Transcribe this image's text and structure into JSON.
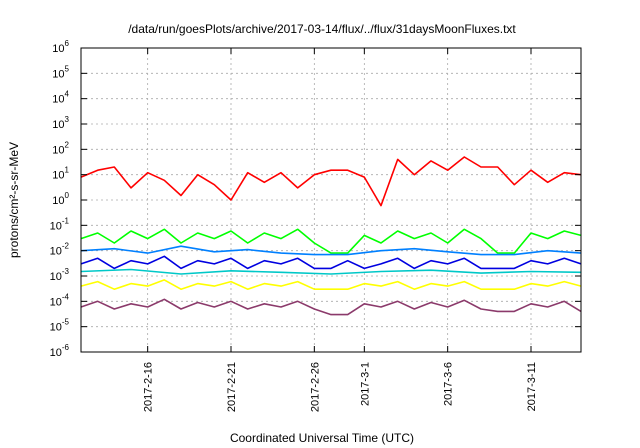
{
  "chart_data": {
    "type": "line",
    "title": "/data/run/goesPlots/archive/2017-03-14/flux/../flux/31daysMoonFluxes.txt",
    "xlabel": "Coordinated Universal Time (UTC)",
    "ylabel": "protons/cm²-s-sr-MeV",
    "y_scale": "log",
    "ylim": [
      1e-06,
      1000000.0
    ],
    "y_ticks": [
      {
        "value": 1e-06,
        "base": "10",
        "exp": "-6"
      },
      {
        "value": 1e-05,
        "base": "10",
        "exp": "-5"
      },
      {
        "value": 0.0001,
        "base": "10",
        "exp": "-4"
      },
      {
        "value": 0.001,
        "base": "10",
        "exp": "-3"
      },
      {
        "value": 0.01,
        "base": "10",
        "exp": "-2"
      },
      {
        "value": 0.1,
        "base": "10",
        "exp": "-1"
      },
      {
        "value": 1.0,
        "base": "10",
        "exp": "0"
      },
      {
        "value": 10.0,
        "base": "10",
        "exp": "1"
      },
      {
        "value": 100.0,
        "base": "10",
        "exp": "2"
      },
      {
        "value": 1000.0,
        "base": "10",
        "exp": "3"
      },
      {
        "value": 10000.0,
        "base": "10",
        "exp": "4"
      },
      {
        "value": 100000.0,
        "base": "10",
        "exp": "5"
      },
      {
        "value": 1000000.0,
        "base": "10",
        "exp": "6"
      }
    ],
    "xlim": [
      "2017-02-12",
      "2017-03-14"
    ],
    "x_ticks": [
      "2017-2-16",
      "2017-2-21",
      "2017-2-26",
      "2017-3-1",
      "2017-3-6",
      "2017-3-11"
    ],
    "x_tick_dates": [
      "2017-02-16",
      "2017-02-21",
      "2017-02-26",
      "2017-03-01",
      "2017-03-06",
      "2017-03-11"
    ],
    "grid": true,
    "series": [
      {
        "color": "#ff0000",
        "x": [
          "2017-02-12",
          "2017-02-13",
          "2017-02-14",
          "2017-02-15",
          "2017-02-16",
          "2017-02-17",
          "2017-02-18",
          "2017-02-19",
          "2017-02-20",
          "2017-02-21",
          "2017-02-22",
          "2017-02-23",
          "2017-02-24",
          "2017-02-25",
          "2017-02-26",
          "2017-02-27",
          "2017-02-28",
          "2017-03-01",
          "2017-03-02",
          "2017-03-03",
          "2017-03-04",
          "2017-03-05",
          "2017-03-06",
          "2017-03-07",
          "2017-03-08",
          "2017-03-09",
          "2017-03-10",
          "2017-03-11",
          "2017-03-12",
          "2017-03-13",
          "2017-03-14"
        ],
        "y": [
          8,
          15,
          20,
          3,
          12,
          6,
          1.5,
          10,
          4,
          1,
          12,
          5,
          12,
          3,
          10,
          15,
          15,
          8,
          0.6,
          40,
          10,
          35,
          15,
          50,
          20,
          20,
          4,
          15,
          5,
          12,
          10
        ]
      },
      {
        "color": "#00ff00",
        "x": [
          "2017-02-12",
          "2017-02-13",
          "2017-02-14",
          "2017-02-15",
          "2017-02-16",
          "2017-02-17",
          "2017-02-18",
          "2017-02-19",
          "2017-02-20",
          "2017-02-21",
          "2017-02-22",
          "2017-02-23",
          "2017-02-24",
          "2017-02-25",
          "2017-02-26",
          "2017-02-27",
          "2017-02-28",
          "2017-03-01",
          "2017-03-02",
          "2017-03-03",
          "2017-03-04",
          "2017-03-05",
          "2017-03-06",
          "2017-03-07",
          "2017-03-08",
          "2017-03-09",
          "2017-03-10",
          "2017-03-11",
          "2017-03-12",
          "2017-03-13",
          "2017-03-14"
        ],
        "y": [
          0.03,
          0.05,
          0.02,
          0.06,
          0.03,
          0.07,
          0.02,
          0.05,
          0.03,
          0.06,
          0.02,
          0.05,
          0.03,
          0.07,
          0.02,
          0.008,
          0.008,
          0.04,
          0.02,
          0.06,
          0.03,
          0.05,
          0.02,
          0.07,
          0.03,
          0.008,
          0.008,
          0.05,
          0.03,
          0.06,
          0.04
        ]
      },
      {
        "color": "#0080ff",
        "x": [
          "2017-02-12",
          "2017-02-14",
          "2017-02-16",
          "2017-02-18",
          "2017-02-20",
          "2017-02-22",
          "2017-02-24",
          "2017-02-26",
          "2017-02-28",
          "2017-03-02",
          "2017-03-04",
          "2017-03-06",
          "2017-03-08",
          "2017-03-10",
          "2017-03-12",
          "2017-03-14"
        ],
        "y": [
          0.01,
          0.012,
          0.008,
          0.015,
          0.009,
          0.011,
          0.008,
          0.007,
          0.007,
          0.01,
          0.012,
          0.009,
          0.007,
          0.007,
          0.01,
          0.008
        ]
      },
      {
        "color": "#0000e0",
        "x": [
          "2017-02-12",
          "2017-02-13",
          "2017-02-14",
          "2017-02-15",
          "2017-02-16",
          "2017-02-17",
          "2017-02-18",
          "2017-02-19",
          "2017-02-20",
          "2017-02-21",
          "2017-02-22",
          "2017-02-23",
          "2017-02-24",
          "2017-02-25",
          "2017-02-26",
          "2017-02-27",
          "2017-02-28",
          "2017-03-01",
          "2017-03-02",
          "2017-03-03",
          "2017-03-04",
          "2017-03-05",
          "2017-03-06",
          "2017-03-07",
          "2017-03-08",
          "2017-03-09",
          "2017-03-10",
          "2017-03-11",
          "2017-03-12",
          "2017-03-13",
          "2017-03-14"
        ],
        "y": [
          0.003,
          0.005,
          0.002,
          0.004,
          0.003,
          0.006,
          0.002,
          0.004,
          0.003,
          0.005,
          0.002,
          0.004,
          0.003,
          0.005,
          0.002,
          0.002,
          0.004,
          0.002,
          0.003,
          0.005,
          0.002,
          0.004,
          0.003,
          0.005,
          0.002,
          0.002,
          0.002,
          0.004,
          0.003,
          0.005,
          0.003
        ]
      },
      {
        "color": "#00c8c8",
        "x": [
          "2017-02-12",
          "2017-02-15",
          "2017-02-18",
          "2017-02-21",
          "2017-02-24",
          "2017-02-27",
          "2017-03-02",
          "2017-03-05",
          "2017-03-08",
          "2017-03-11",
          "2017-03-14"
        ],
        "y": [
          0.0015,
          0.0018,
          0.0012,
          0.0016,
          0.0014,
          0.0012,
          0.0015,
          0.0017,
          0.0013,
          0.0015,
          0.0014
        ]
      },
      {
        "color": "#ffff00",
        "x": [
          "2017-02-12",
          "2017-02-13",
          "2017-02-14",
          "2017-02-15",
          "2017-02-16",
          "2017-02-17",
          "2017-02-18",
          "2017-02-19",
          "2017-02-20",
          "2017-02-21",
          "2017-02-22",
          "2017-02-23",
          "2017-02-24",
          "2017-02-25",
          "2017-02-26",
          "2017-02-27",
          "2017-02-28",
          "2017-03-01",
          "2017-03-02",
          "2017-03-03",
          "2017-03-04",
          "2017-03-05",
          "2017-03-06",
          "2017-03-07",
          "2017-03-08",
          "2017-03-09",
          "2017-03-10",
          "2017-03-11",
          "2017-03-12",
          "2017-03-13",
          "2017-03-14"
        ],
        "y": [
          0.0004,
          0.0006,
          0.0003,
          0.0005,
          0.0004,
          0.0007,
          0.0003,
          0.0005,
          0.0004,
          0.0006,
          0.0003,
          0.0005,
          0.0004,
          0.0006,
          0.0003,
          0.0003,
          0.0003,
          0.0005,
          0.0004,
          0.0006,
          0.0003,
          0.0005,
          0.0004,
          0.0006,
          0.0003,
          0.0003,
          0.0003,
          0.0005,
          0.0004,
          0.0006,
          0.0004
        ]
      },
      {
        "color": "#8b3a6b",
        "x": [
          "2017-02-12",
          "2017-02-13",
          "2017-02-14",
          "2017-02-15",
          "2017-02-16",
          "2017-02-17",
          "2017-02-18",
          "2017-02-19",
          "2017-02-20",
          "2017-02-21",
          "2017-02-22",
          "2017-02-23",
          "2017-02-24",
          "2017-02-25",
          "2017-02-26",
          "2017-02-27",
          "2017-02-28",
          "2017-03-01",
          "2017-03-02",
          "2017-03-03",
          "2017-03-04",
          "2017-03-05",
          "2017-03-06",
          "2017-03-07",
          "2017-03-08",
          "2017-03-09",
          "2017-03-10",
          "2017-03-11",
          "2017-03-12",
          "2017-03-13",
          "2017-03-14"
        ],
        "y": [
          6e-05,
          0.0001,
          5e-05,
          8e-05,
          6e-05,
          0.00012,
          5e-05,
          9e-05,
          6e-05,
          0.0001,
          5e-05,
          8e-05,
          6e-05,
          0.0001,
          5e-05,
          3e-05,
          3e-05,
          8e-05,
          6e-05,
          0.0001,
          5e-05,
          9e-05,
          6e-05,
          0.00011,
          5e-05,
          4e-05,
          4e-05,
          8e-05,
          6e-05,
          0.0001,
          4e-05
        ]
      }
    ]
  }
}
